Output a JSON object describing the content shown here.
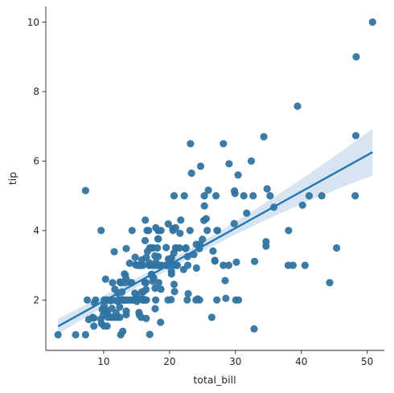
{
  "chart_data": {
    "type": "scatter",
    "title": "",
    "xlabel": "total_bill",
    "ylabel": "tip",
    "xlim": [
      1.22,
      52.6
    ],
    "ylim": [
      0.55,
      10.45
    ],
    "xticks": [
      10,
      20,
      30,
      40,
      50
    ],
    "yticks": [
      2,
      4,
      6,
      8,
      10
    ],
    "grid": false,
    "legend": "none",
    "colors": {
      "points": "#3274a1",
      "regression": "#2776b2",
      "ci_band": "#c9dcef"
    },
    "series": [
      {
        "points": [
          [
            3.07,
            1.0
          ],
          [
            5.75,
            1.0
          ],
          [
            7.25,
            1.0
          ],
          [
            7.25,
            5.15
          ],
          [
            7.51,
            2.0
          ],
          [
            7.74,
            1.44
          ],
          [
            8.35,
            1.5
          ],
          [
            8.51,
            1.25
          ],
          [
            8.52,
            1.48
          ],
          [
            8.58,
            1.92
          ],
          [
            8.77,
            2.0
          ],
          [
            9.55,
            1.45
          ],
          [
            9.6,
            4.0
          ],
          [
            9.68,
            1.32
          ],
          [
            9.78,
            1.73
          ],
          [
            9.94,
            1.56
          ],
          [
            10.07,
            1.83
          ],
          [
            10.07,
            1.25
          ],
          [
            10.09,
            2.0
          ],
          [
            10.27,
            1.71
          ],
          [
            10.29,
            2.6
          ],
          [
            10.33,
            1.67
          ],
          [
            10.33,
            2.0
          ],
          [
            10.34,
            1.66
          ],
          [
            10.34,
            2.0
          ],
          [
            10.51,
            1.25
          ],
          [
            10.59,
            1.61
          ],
          [
            10.63,
            2.0
          ],
          [
            10.65,
            1.5
          ],
          [
            11.02,
            1.98
          ],
          [
            11.17,
            1.5
          ],
          [
            11.24,
            1.76
          ],
          [
            11.35,
            2.5
          ],
          [
            11.38,
            2.0
          ],
          [
            11.59,
            1.5
          ],
          [
            11.61,
            3.39
          ],
          [
            11.69,
            2.31
          ],
          [
            11.87,
            1.63
          ],
          [
            12.02,
            1.97
          ],
          [
            12.03,
            1.5
          ],
          [
            12.16,
            2.2
          ],
          [
            12.26,
            2.0
          ],
          [
            12.43,
            1.8
          ],
          [
            12.46,
            1.5
          ],
          [
            12.48,
            2.52
          ],
          [
            12.54,
            2.5
          ],
          [
            12.6,
            1.0
          ],
          [
            12.66,
            2.5
          ],
          [
            12.69,
            2.0
          ],
          [
            12.74,
            2.01
          ],
          [
            12.76,
            2.23
          ],
          [
            12.9,
            1.1
          ],
          [
            13.0,
            2.0
          ],
          [
            13.03,
            2.0
          ],
          [
            13.13,
            2.0
          ],
          [
            13.16,
            2.75
          ],
          [
            13.27,
            2.5
          ],
          [
            13.28,
            2.72
          ],
          [
            13.37,
            2.0
          ],
          [
            13.39,
            2.61
          ],
          [
            13.42,
            3.48
          ],
          [
            13.42,
            1.68
          ],
          [
            13.42,
            1.58
          ],
          [
            13.51,
            2.0
          ],
          [
            13.81,
            2.0
          ],
          [
            13.94,
            3.06
          ],
          [
            14.07,
            2.5
          ],
          [
            14.15,
            2.0
          ],
          [
            14.26,
            2.5
          ],
          [
            14.31,
            4.0
          ],
          [
            14.48,
            2.0
          ],
          [
            14.52,
            2.0
          ],
          [
            14.73,
            2.2
          ],
          [
            14.78,
            3.23
          ],
          [
            14.83,
            3.02
          ],
          [
            15.01,
            2.09
          ],
          [
            15.04,
            1.96
          ],
          [
            15.06,
            3.0
          ],
          [
            15.36,
            1.64
          ],
          [
            15.38,
            3.0
          ],
          [
            15.42,
            1.57
          ],
          [
            15.48,
            2.02
          ],
          [
            15.53,
            3.0
          ],
          [
            15.69,
            1.5
          ],
          [
            15.69,
            3.0
          ],
          [
            15.77,
            2.23
          ],
          [
            15.81,
            3.16
          ],
          [
            15.95,
            2.0
          ],
          [
            15.98,
            2.03
          ],
          [
            15.98,
            3.0
          ],
          [
            16.0,
            2.0
          ],
          [
            16.04,
            2.24
          ],
          [
            16.21,
            2.0
          ],
          [
            16.27,
            2.5
          ],
          [
            16.29,
            3.71
          ],
          [
            16.31,
            2.0
          ],
          [
            16.32,
            4.3
          ],
          [
            16.4,
            2.5
          ],
          [
            16.43,
            2.3
          ],
          [
            16.45,
            1.47
          ],
          [
            16.47,
            3.23
          ],
          [
            16.49,
            2.0
          ],
          [
            16.58,
            4.0
          ],
          [
            16.66,
            3.4
          ],
          [
            16.82,
            4.0
          ],
          [
            16.9,
            3.0
          ],
          [
            16.93,
            3.07
          ],
          [
            16.97,
            3.5
          ],
          [
            16.99,
            1.01
          ],
          [
            17.07,
            3.0
          ],
          [
            17.26,
            2.74
          ],
          [
            17.29,
            2.71
          ],
          [
            17.31,
            3.5
          ],
          [
            17.46,
            2.54
          ],
          [
            17.47,
            3.5
          ],
          [
            17.51,
            3.0
          ],
          [
            17.59,
            2.64
          ],
          [
            17.78,
            3.27
          ],
          [
            17.81,
            2.34
          ],
          [
            17.82,
            1.75
          ],
          [
            17.89,
            2.0
          ],
          [
            17.92,
            4.08
          ],
          [
            17.92,
            3.08
          ],
          [
            18.04,
            3.0
          ],
          [
            18.15,
            3.5
          ],
          [
            18.24,
            3.76
          ],
          [
            18.26,
            3.25
          ],
          [
            18.28,
            4.0
          ],
          [
            18.29,
            3.76
          ],
          [
            18.29,
            4.0
          ],
          [
            18.35,
            2.5
          ],
          [
            18.43,
            3.0
          ],
          [
            18.64,
            1.36
          ],
          [
            18.69,
            2.31
          ],
          [
            18.71,
            4.0
          ],
          [
            18.78,
            3.0
          ],
          [
            19.44,
            3.0
          ],
          [
            19.49,
            3.51
          ],
          [
            19.65,
            3.0
          ],
          [
            19.77,
            2.0
          ],
          [
            19.81,
            4.19
          ],
          [
            19.82,
            3.18
          ],
          [
            20.08,
            3.15
          ],
          [
            20.23,
            2.01
          ],
          [
            20.27,
            2.83
          ],
          [
            20.29,
            2.75
          ],
          [
            20.29,
            3.21
          ],
          [
            20.45,
            3.0
          ],
          [
            20.49,
            4.06
          ],
          [
            20.53,
            4.0
          ],
          [
            20.65,
            3.35
          ],
          [
            20.69,
            2.45
          ],
          [
            20.69,
            5.0
          ],
          [
            20.76,
            2.24
          ],
          [
            20.9,
            3.5
          ],
          [
            20.92,
            4.08
          ],
          [
            21.01,
            3.5
          ],
          [
            21.01,
            3.0
          ],
          [
            21.16,
            3.0
          ],
          [
            21.5,
            3.5
          ],
          [
            21.58,
            3.92
          ],
          [
            21.7,
            4.3
          ],
          [
            22.12,
            2.88
          ],
          [
            22.23,
            5.0
          ],
          [
            22.42,
            3.48
          ],
          [
            22.49,
            3.5
          ],
          [
            22.67,
            2.0
          ],
          [
            22.75,
            3.25
          ],
          [
            22.76,
            3.0
          ],
          [
            22.82,
            2.18
          ],
          [
            23.1,
            4.0
          ],
          [
            23.17,
            6.5
          ],
          [
            23.33,
            5.65
          ],
          [
            23.68,
            3.31
          ],
          [
            24.01,
            2.0
          ],
          [
            24.06,
            3.6
          ],
          [
            24.08,
            2.92
          ],
          [
            24.27,
            2.03
          ],
          [
            24.52,
            3.48
          ],
          [
            24.55,
            2.0
          ],
          [
            24.59,
            3.61
          ],
          [
            24.71,
            5.85
          ],
          [
            25.0,
            3.75
          ],
          [
            25.21,
            4.29
          ],
          [
            25.28,
            5.0
          ],
          [
            25.29,
            4.71
          ],
          [
            25.56,
            4.34
          ],
          [
            25.71,
            4.0
          ],
          [
            25.89,
            5.16
          ],
          [
            26.41,
            1.5
          ],
          [
            26.59,
            3.41
          ],
          [
            26.86,
            3.14
          ],
          [
            26.88,
            3.12
          ],
          [
            27.05,
            5.0
          ],
          [
            27.18,
            2.0
          ],
          [
            27.2,
            4.0
          ],
          [
            27.28,
            4.0
          ],
          [
            28.15,
            3.0
          ],
          [
            28.17,
            6.5
          ],
          [
            28.44,
            2.56
          ],
          [
            28.55,
            2.05
          ],
          [
            28.97,
            3.0
          ],
          [
            29.03,
            5.92
          ],
          [
            29.8,
            4.2
          ],
          [
            29.85,
            5.14
          ],
          [
            29.93,
            5.07
          ],
          [
            30.06,
            2.0
          ],
          [
            30.14,
            3.09
          ],
          [
            30.4,
            5.6
          ],
          [
            30.46,
            2.0
          ],
          [
            31.27,
            5.0
          ],
          [
            31.71,
            4.5
          ],
          [
            32.4,
            6.0
          ],
          [
            32.68,
            5.0
          ],
          [
            32.83,
            1.17
          ],
          [
            32.9,
            3.11
          ],
          [
            34.3,
            6.7
          ],
          [
            34.63,
            3.55
          ],
          [
            34.65,
            3.68
          ],
          [
            34.81,
            5.2
          ],
          [
            35.26,
            5.0
          ],
          [
            35.83,
            4.67
          ],
          [
            38.01,
            3.0
          ],
          [
            38.07,
            4.0
          ],
          [
            38.73,
            3.0
          ],
          [
            39.42,
            7.58
          ],
          [
            40.17,
            4.73
          ],
          [
            40.55,
            3.0
          ],
          [
            41.19,
            5.0
          ],
          [
            43.11,
            5.0
          ],
          [
            44.3,
            2.5
          ],
          [
            45.35,
            3.5
          ],
          [
            48.17,
            5.0
          ],
          [
            48.27,
            6.73
          ],
          [
            48.33,
            9.0
          ],
          [
            50.81,
            10.0
          ]
        ]
      }
    ],
    "regression": {
      "x_range": [
        3.07,
        50.81
      ],
      "slope": 0.105,
      "intercept": 0.92,
      "ci_lower": [
        1.12,
        5.65
      ],
      "ci_upper": [
        1.56,
        7.0
      ]
    }
  }
}
